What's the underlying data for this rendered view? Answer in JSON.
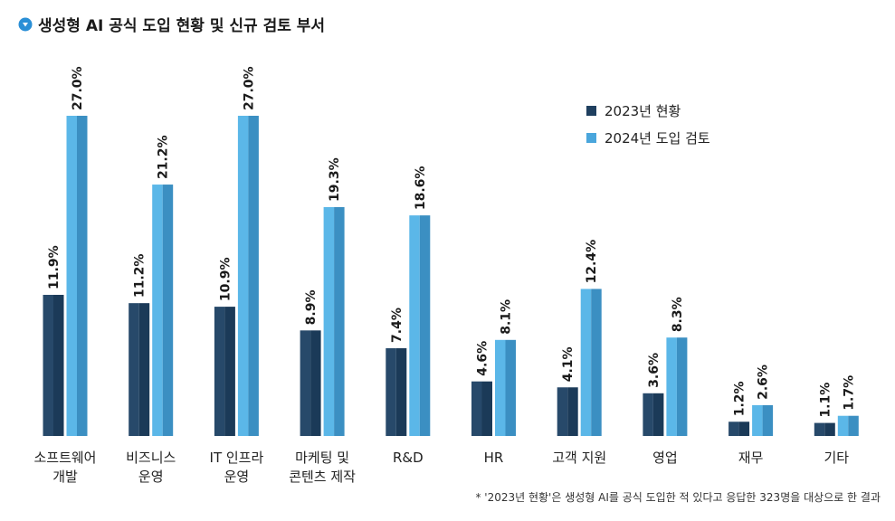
{
  "title": "생성형 AI 공식 도입 현황 및 신규 검토 부서",
  "note": "* '2023년 현황'은 생성형 AI를 공식 도입한 적 있다고 응답한 323명을 대상으로 한 결과",
  "colors": {
    "series_2023_light": "#27496a",
    "series_2023_dark": "#1b3a58",
    "series_2024_light": "#5bb7e8",
    "series_2024_dark": "#3b8fc2",
    "icon": "#2a8fd6"
  },
  "icon": "circle-down-arrow-icon",
  "chart_data": {
    "type": "bar",
    "categories": [
      [
        "소프트웨어",
        "개발"
      ],
      [
        "비즈니스",
        "운영"
      ],
      [
        "IT 인프라",
        "운영"
      ],
      [
        "마케팅 및",
        "콘텐츠 제작"
      ],
      [
        "R&D"
      ],
      [
        "HR"
      ],
      [
        "고객 지원"
      ],
      [
        "영업"
      ],
      [
        "재무"
      ],
      [
        "기타"
      ]
    ],
    "series": [
      {
        "name": "2023년 현황",
        "values": [
          11.9,
          11.2,
          10.9,
          8.9,
          7.4,
          4.6,
          4.1,
          3.6,
          1.2,
          1.1
        ],
        "labels": [
          "11.9%",
          "11.2%",
          "10.9%",
          "8.9%",
          "7.4%",
          "4.6%",
          "4.1%",
          "3.6%",
          "1.2%",
          "1.1%"
        ]
      },
      {
        "name": "2024년 도입 검토",
        "values": [
          27.0,
          21.2,
          27.0,
          19.3,
          18.6,
          8.1,
          12.4,
          8.3,
          2.6,
          1.7
        ],
        "labels": [
          "27.0%",
          "21.2%",
          "27.0%",
          "19.3%",
          "18.6%",
          "8.1%",
          "12.4%",
          "8.3%",
          "2.6%",
          "1.7%"
        ]
      }
    ],
    "ylim": [
      0,
      27.0
    ],
    "legend_position": "top-right",
    "grid": false
  }
}
